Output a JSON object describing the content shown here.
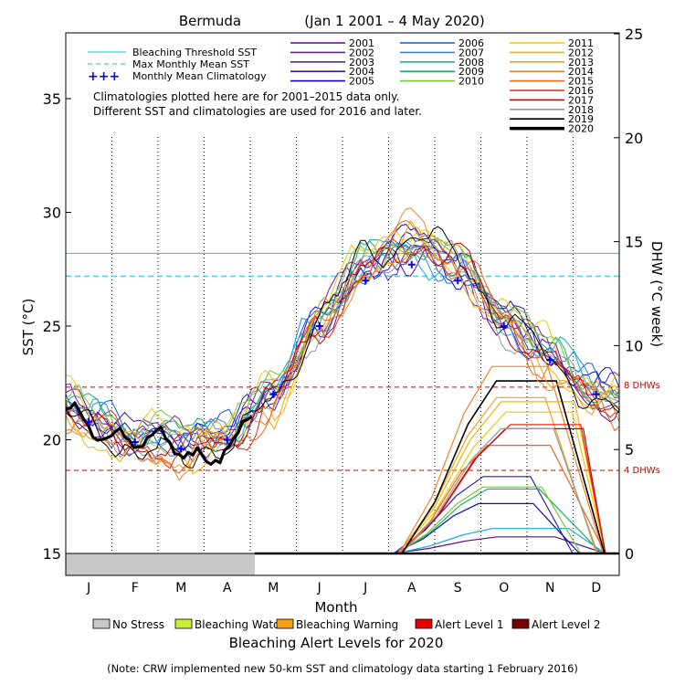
{
  "chart_data": {
    "type": "line",
    "title": "Bermuda",
    "date_range": "(Jan 1 2001 – 4 May 2020)",
    "xlabel": "Month",
    "ylabel_left": "SST (°C)",
    "ylabel_right": "DHW (°C week)",
    "xlim": [
      0,
      12
    ],
    "x_ticks": [
      "J",
      "F",
      "M",
      "A",
      "M",
      "J",
      "J",
      "A",
      "S",
      "O",
      "N",
      "D"
    ],
    "ylim_left": [
      15,
      38
    ],
    "y_ticks_left": [
      15,
      20,
      25,
      30,
      35
    ],
    "ylim_right": [
      0,
      25
    ],
    "y_ticks_right": [
      0,
      5,
      10,
      15,
      20,
      25
    ],
    "bleaching_threshold_sst": 28.2,
    "max_monthly_mean_sst": 27.2,
    "dhw_thresholds": [
      {
        "value": 8,
        "label": "8 DHWs"
      },
      {
        "value": 4,
        "label": "4 DHWs"
      }
    ],
    "legend_lines": [
      {
        "label": "Bleaching Threshold SST",
        "color": "#00c8e6"
      },
      {
        "label": "Max Monthly Mean SST",
        "color": "#00c8e6"
      },
      {
        "label": "Monthly Mean Climatology",
        "color": "#0000ff"
      }
    ],
    "notes": [
      "Climatologies plotted here are for 2001–2015 data only.",
      "Different SST and climatologies are used for 2016 and later."
    ],
    "monthly_mean_climatology": {
      "x": [
        0.5,
        1.5,
        2.5,
        3.5,
        4.5,
        5.5,
        6.5,
        7.5,
        8.5,
        9.5,
        10.5,
        11.5
      ],
      "values": [
        20.8,
        19.9,
        19.6,
        20.0,
        22.0,
        25.0,
        27.0,
        27.7,
        27.0,
        25.0,
        23.5,
        22.0
      ]
    },
    "series": [
      {
        "name": "2001",
        "color": "#5a0a8c",
        "peak": 28.0,
        "phase": 0.3,
        "dhw_peak": 0.8
      },
      {
        "name": "2002",
        "color": "#7a18a8",
        "peak": 28.2,
        "phase": 1.1,
        "dhw_peak": 0
      },
      {
        "name": "2003",
        "color": "#5028b4",
        "peak": 28.1,
        "phase": 2.0,
        "dhw_peak": 0
      },
      {
        "name": "2004",
        "color": "#281eaa",
        "peak": 28.3,
        "phase": 2.7,
        "dhw_peak": 3.7
      },
      {
        "name": "2005",
        "color": "#0a0ac8",
        "peak": 28.6,
        "phase": 3.4,
        "dhw_peak": 2.4
      },
      {
        "name": "2006",
        "color": "#145adc",
        "peak": 28.0,
        "phase": 4.2,
        "dhw_peak": 0
      },
      {
        "name": "2007",
        "color": "#1e8cf0",
        "peak": 27.8,
        "phase": 5.0,
        "dhw_peak": 0
      },
      {
        "name": "2008",
        "color": "#14aadc",
        "peak": 28.2,
        "phase": 5.7,
        "dhw_peak": 1.2
      },
      {
        "name": "2009",
        "color": "#14b464",
        "peak": 28.5,
        "phase": 6.5,
        "dhw_peak": 3.1
      },
      {
        "name": "2010",
        "color": "#78c832",
        "peak": 28.7,
        "phase": 7.1,
        "dhw_peak": 3.2
      },
      {
        "name": "2011",
        "color": "#f0c800",
        "peak": 28.8,
        "phase": 7.9,
        "dhw_peak": 6.8
      },
      {
        "name": "2012",
        "color": "#f5b400",
        "peak": 29.0,
        "phase": 8.6,
        "dhw_peak": 7.3
      },
      {
        "name": "2013",
        "color": "#f5a014",
        "peak": 28.9,
        "phase": 9.3,
        "dhw_peak": 7.5
      },
      {
        "name": "2014",
        "color": "#f08228",
        "peak": 29.2,
        "phase": 10.0,
        "dhw_peak": 9.0
      },
      {
        "name": "2015",
        "color": "#f0641e",
        "peak": 29.3,
        "phase": 10.8,
        "dhw_peak": 5.2
      },
      {
        "name": "2016",
        "color": "#e62814",
        "peak": 28.9,
        "phase": 11.5,
        "dhw_peak": 6.2
      },
      {
        "name": "2017",
        "color": "#c80000",
        "peak": 29.0,
        "phase": 12.2,
        "dhw_peak": 6.0
      },
      {
        "name": "2018",
        "color": "#969696",
        "peak": 28.6,
        "phase": 13.0,
        "dhw_peak": 6.0
      },
      {
        "name": "2019",
        "color": "#000000",
        "peak": 29.2,
        "phase": 13.8,
        "dhw_peak": 8.3
      },
      {
        "name": "2020",
        "color": "#000000",
        "peak": null,
        "phase": 14.4,
        "dhw_peak": 0,
        "thick": true,
        "end_month": 4.1
      }
    ],
    "alert_legend_title": "Bleaching Alert Levels for 2020",
    "alert_levels": [
      {
        "label": "No Stress",
        "color": "#c8c8c8"
      },
      {
        "label": "Bleaching Watch",
        "color": "#c8f032"
      },
      {
        "label": "Bleaching Warning",
        "color": "#f5a014"
      },
      {
        "label": "Alert Level 1",
        "color": "#e60000"
      },
      {
        "label": "Alert Level 2",
        "color": "#780000"
      }
    ],
    "alert_bar_2020": {
      "no_stress_until_month": 4.1
    },
    "footnote": "(Note: CRW implemented new 50-km SST and climatology data starting 1 February 2016)"
  }
}
